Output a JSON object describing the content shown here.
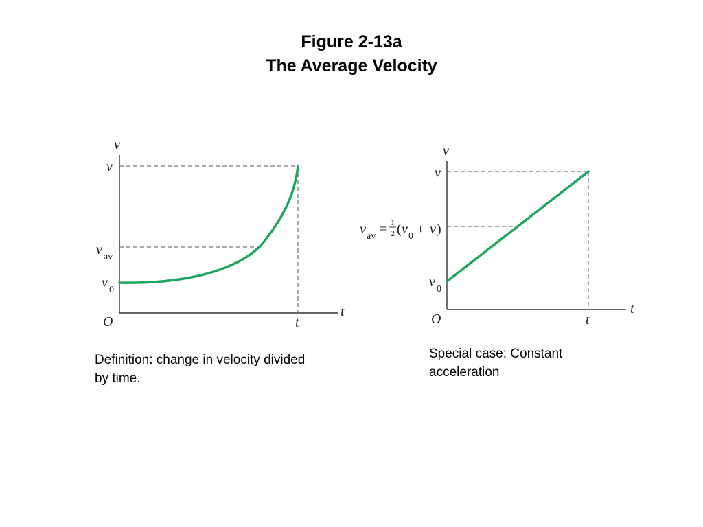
{
  "header": {
    "figure_number": "Figure 2-13a",
    "figure_title": "The Average Velocity"
  },
  "left_graph": {
    "y_axis_label": "v",
    "x_axis_label": "t",
    "origin_label": "O",
    "v_tick": "v",
    "vav_tick_main": "v",
    "vav_tick_sub": "av",
    "v0_tick_main": "v",
    "v0_tick_sub": "0",
    "t_tick": "t",
    "curve_color": "#1aa65c"
  },
  "right_graph": {
    "y_axis_label": "v",
    "x_axis_label": "t",
    "origin_label": "O",
    "v_tick": "v",
    "vav_formula": {
      "v": "v",
      "sub_av": "av",
      "equals": "=",
      "half_num": "1",
      "half_den": "2",
      "open_paren": "(",
      "v0_main": "v",
      "v0_sub": "0",
      "plus": "+",
      "v2": "v",
      "close_paren": ")"
    },
    "v0_tick_main": "v",
    "v0_tick_sub": "0",
    "t_tick": "t",
    "line_color": "#1aa65c"
  },
  "captions": {
    "left": "Definition: change in velocity divided by time.",
    "right": "Special case: Constant acceleration"
  }
}
